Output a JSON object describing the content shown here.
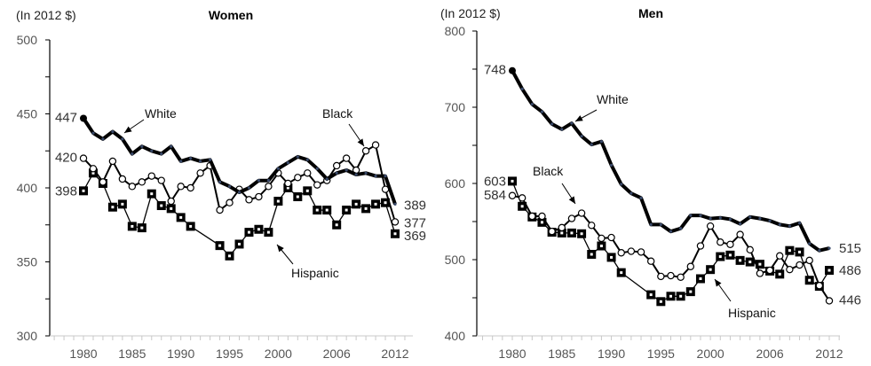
{
  "chart_data": [
    {
      "type": "line",
      "title": "Women",
      "unit_label": "(In 2012 $)",
      "ylim": [
        300,
        500
      ],
      "yticks": [
        300,
        350,
        400,
        450,
        500
      ],
      "xlim": [
        1977,
        2013
      ],
      "xtick_labels": [
        "1980",
        "1985",
        "1990",
        "1995",
        "2000",
        "2006",
        "2012"
      ],
      "xtick_values": [
        1980,
        1985,
        1990,
        1995,
        2000,
        2006,
        2012
      ],
      "x": [
        1980,
        1981,
        1982,
        1983,
        1984,
        1985,
        1986,
        1987,
        1988,
        1989,
        1990,
        1991,
        1992,
        1993,
        1994,
        1995,
        1996,
        1997,
        1998,
        1999,
        2000,
        2001,
        2002,
        2003,
        2004,
        2005,
        2006,
        2007,
        2008,
        2009,
        2010,
        2011,
        2012
      ],
      "series": [
        {
          "name": "White",
          "marker": "dot",
          "values": [
            447,
            437,
            433,
            438,
            433,
            423,
            428,
            425,
            423,
            428,
            418,
            420,
            418,
            419,
            404,
            401,
            397,
            400,
            405,
            405,
            413,
            417,
            421,
            419,
            413,
            406,
            410,
            412,
            409,
            410,
            408,
            408,
            389
          ]
        },
        {
          "name": "Black",
          "marker": "open-circle",
          "values": [
            420,
            413,
            404,
            418,
            406,
            401,
            404,
            408,
            405,
            391,
            401,
            400,
            410,
            415,
            385,
            390,
            399,
            392,
            394,
            401,
            410,
            403,
            407,
            410,
            402,
            405,
            415,
            420,
            412,
            425,
            429,
            399,
            377
          ]
        },
        {
          "name": "Hispanic",
          "marker": "square",
          "values": [
            398,
            410,
            403,
            387,
            389,
            374,
            373,
            396,
            388,
            386,
            380,
            374,
            null,
            null,
            361,
            354,
            362,
            370,
            372,
            370,
            391,
            400,
            394,
            398,
            385,
            385,
            375,
            385,
            389,
            386,
            389,
            390,
            369
          ]
        }
      ],
      "start_labels": [
        "447",
        "420",
        "398"
      ],
      "end_labels": [
        "389",
        "377",
        "369"
      ],
      "annotations": [
        "White",
        "Black",
        "Hispanic"
      ]
    },
    {
      "type": "line",
      "title": "Men",
      "unit_label": "(In 2012 $)",
      "ylim": [
        400,
        800
      ],
      "yticks": [
        400,
        500,
        600,
        700,
        800
      ],
      "xlim": [
        1977,
        2013
      ],
      "xtick_labels": [
        "1980",
        "1985",
        "1990",
        "1995",
        "2000",
        "2006",
        "2012"
      ],
      "xtick_values": [
        1980,
        1985,
        1990,
        1995,
        2000,
        2006,
        2012
      ],
      "x": [
        1980,
        1981,
        1982,
        1983,
        1984,
        1985,
        1986,
        1987,
        1988,
        1989,
        1990,
        1991,
        1992,
        1993,
        1994,
        1995,
        1996,
        1997,
        1998,
        1999,
        2000,
        2001,
        2002,
        2003,
        2004,
        2005,
        2006,
        2007,
        2008,
        2009,
        2010,
        2011,
        2012
      ],
      "series": [
        {
          "name": "White",
          "marker": "dot",
          "values": [
            748,
            724,
            704,
            694,
            678,
            671,
            679,
            662,
            651,
            655,
            624,
            599,
            587,
            581,
            546,
            546,
            537,
            541,
            558,
            558,
            554,
            555,
            553,
            547,
            556,
            554,
            551,
            546,
            544,
            548,
            521,
            512,
            515
          ]
        },
        {
          "name": "Black",
          "marker": "open-circle",
          "values": [
            584,
            581,
            557,
            557,
            537,
            542,
            554,
            561,
            545,
            528,
            529,
            509,
            511,
            510,
            498,
            478,
            479,
            477,
            491,
            518,
            544,
            523,
            520,
            533,
            513,
            482,
            486,
            505,
            487,
            493,
            499,
            466,
            446
          ]
        },
        {
          "name": "Hispanic",
          "marker": "square",
          "values": [
            603,
            570,
            556,
            549,
            536,
            535,
            535,
            534,
            507,
            518,
            503,
            483,
            null,
            null,
            454,
            445,
            452,
            452,
            458,
            475,
            487,
            504,
            506,
            499,
            497,
            494,
            485,
            481,
            512,
            510,
            473,
            465,
            486
          ]
        }
      ],
      "start_labels": [
        "748",
        "584",
        "603"
      ],
      "end_labels": [
        "515",
        "446",
        "486"
      ],
      "annotations": [
        "White",
        "Black",
        "Hispanic"
      ]
    }
  ]
}
